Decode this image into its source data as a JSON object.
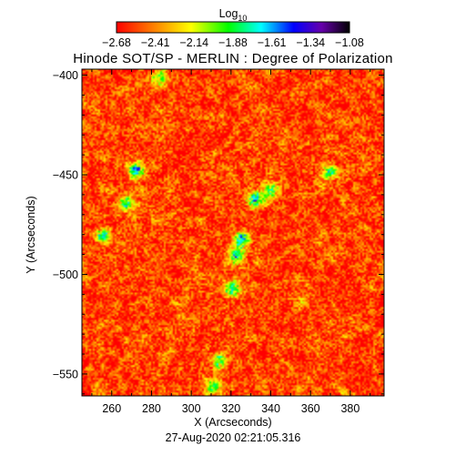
{
  "chart_data": {
    "type": "heatmap",
    "title": "Hinode SOT/SP - MERLIN : Degree of Polarization",
    "xlabel": "X (Arcseconds)",
    "ylabel": "Y (Arcseconds)",
    "timestamp": "27-Aug-2020 02:21:05.316",
    "xlim": [
      245,
      397
    ],
    "ylim": [
      -561,
      -397
    ],
    "x_ticks": [
      260,
      280,
      300,
      320,
      340,
      360,
      380
    ],
    "y_ticks": [
      -400,
      -450,
      -500,
      -550
    ],
    "colorbar": {
      "label_base": "Log",
      "label_sub": "10",
      "range": [
        -2.68,
        -1.08
      ],
      "ticks": [
        "-2.68",
        "-2.41",
        "-2.14",
        "-1.88",
        "-1.61",
        "-1.34",
        "-1.08"
      ],
      "colormap": [
        "#ff0000",
        "#ff8000",
        "#ffff00",
        "#00ff00",
        "#00ffff",
        "#0000ff",
        "#6600aa",
        "#000000"
      ]
    },
    "typical_value": -2.55,
    "grid": false,
    "features": [
      {
        "x": 325,
        "y": -482,
        "value": -1.35
      },
      {
        "x": 332,
        "y": -462,
        "value": -1.45
      },
      {
        "x": 322,
        "y": -490,
        "value": -1.55
      },
      {
        "x": 272,
        "y": -447,
        "value": -1.55
      },
      {
        "x": 267,
        "y": -464,
        "value": -1.6
      },
      {
        "x": 369,
        "y": -448,
        "value": -1.65
      },
      {
        "x": 320,
        "y": -507,
        "value": -1.6
      },
      {
        "x": 255,
        "y": -480,
        "value": -1.65
      },
      {
        "x": 311,
        "y": -556,
        "value": -1.7
      },
      {
        "x": 340,
        "y": -457,
        "value": -1.75
      },
      {
        "x": 314,
        "y": -543,
        "value": -1.8
      },
      {
        "x": 283,
        "y": -401,
        "value": -1.85
      }
    ]
  }
}
